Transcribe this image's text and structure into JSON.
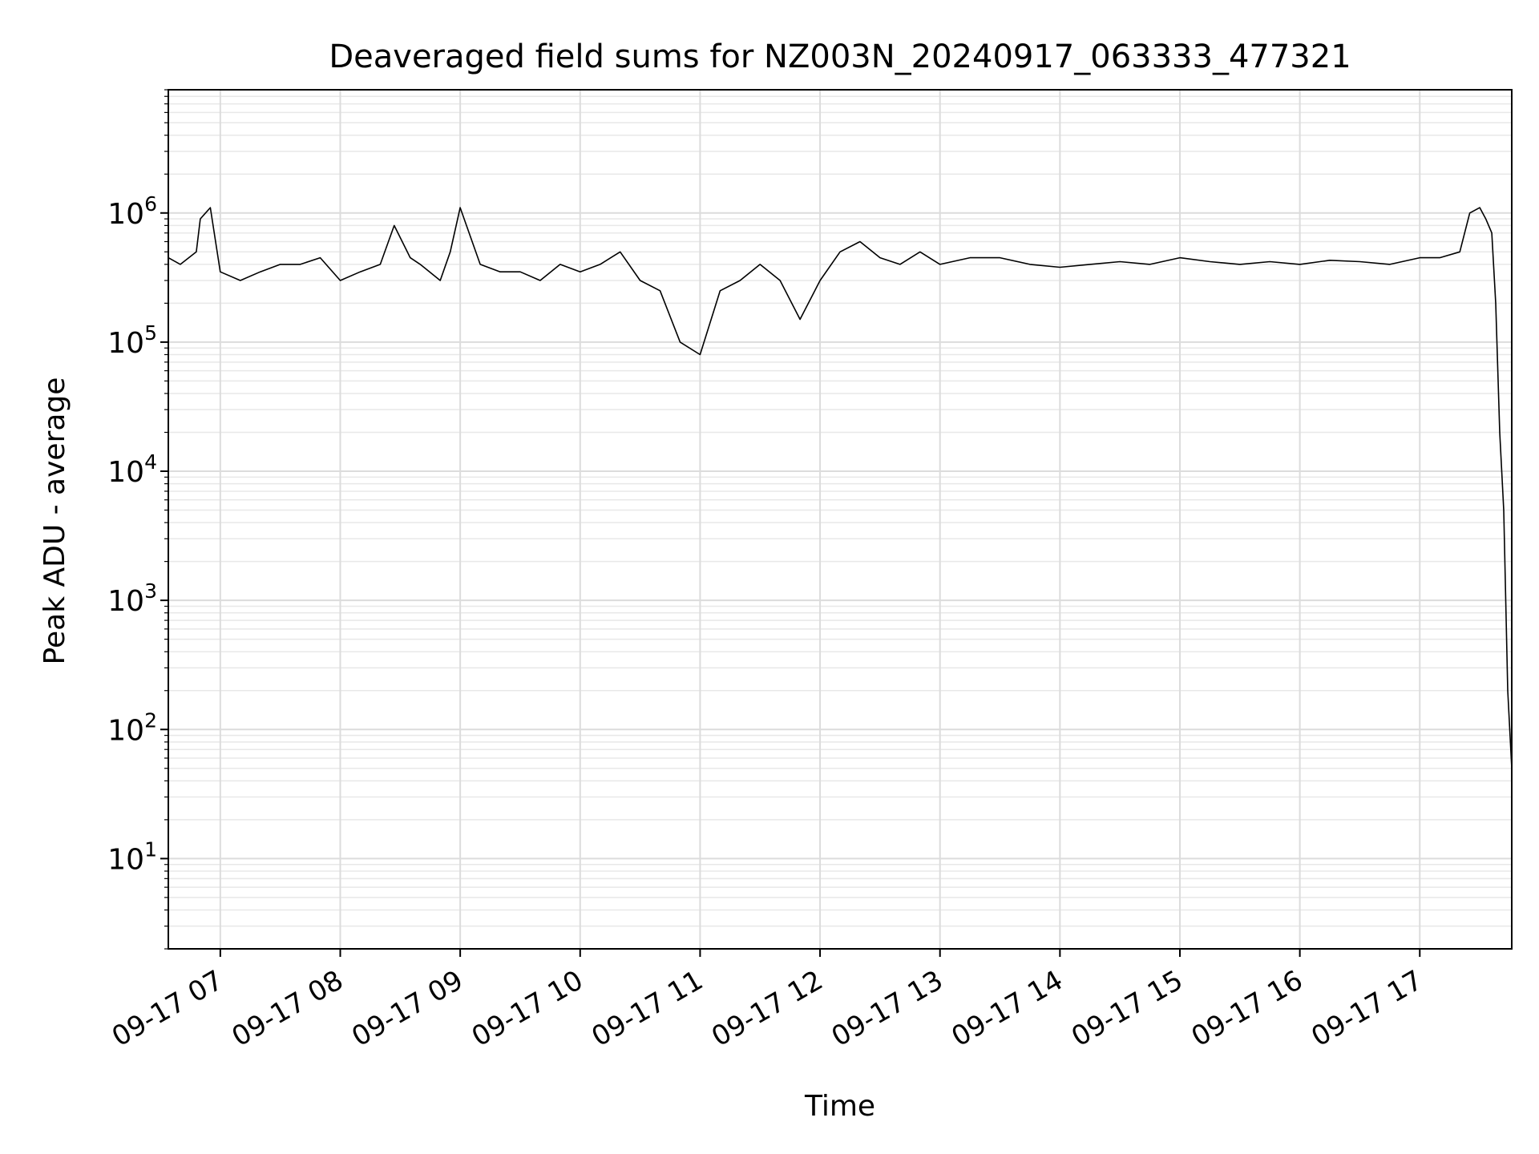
{
  "chart_data": {
    "type": "line",
    "title": "Deaveraged field sums for NZ003N_20240917_063333_477321",
    "xlabel": "Time",
    "ylabel": "Peak ADU - average",
    "yscale": "log",
    "ylim": [
      2,
      9000000
    ],
    "xlim": [
      "2024-09-17 06:34",
      "2024-09-17 17:46"
    ],
    "grid": "major and minor, light gray",
    "legend": "none",
    "line_color": "#000000",
    "x_ticks": [
      {
        "t": "2024-09-17 07:00",
        "label": "09-17 07"
      },
      {
        "t": "2024-09-17 08:00",
        "label": "09-17 08"
      },
      {
        "t": "2024-09-17 09:00",
        "label": "09-17 09"
      },
      {
        "t": "2024-09-17 10:00",
        "label": "09-17 10"
      },
      {
        "t": "2024-09-17 11:00",
        "label": "09-17 11"
      },
      {
        "t": "2024-09-17 12:00",
        "label": "09-17 12"
      },
      {
        "t": "2024-09-17 13:00",
        "label": "09-17 13"
      },
      {
        "t": "2024-09-17 14:00",
        "label": "09-17 14"
      },
      {
        "t": "2024-09-17 15:00",
        "label": "09-17 15"
      },
      {
        "t": "2024-09-17 16:00",
        "label": "09-17 16"
      },
      {
        "t": "2024-09-17 17:00",
        "label": "09-17 17"
      }
    ],
    "y_ticks": [
      {
        "value": 10,
        "base": "10",
        "exp": "1"
      },
      {
        "value": 100,
        "base": "10",
        "exp": "2"
      },
      {
        "value": 1000,
        "base": "10",
        "exp": "3"
      },
      {
        "value": 10000,
        "base": "10",
        "exp": "4"
      },
      {
        "value": 100000,
        "base": "10",
        "exp": "5"
      },
      {
        "value": 1000000,
        "base": "10",
        "exp": "6"
      }
    ],
    "series": [
      {
        "x": [
          "2024-09-17 06:34",
          "2024-09-17 06:40",
          "2024-09-17 06:48",
          "2024-09-17 06:50",
          "2024-09-17 06:55",
          "2024-09-17 07:00",
          "2024-09-17 07:10",
          "2024-09-17 07:20",
          "2024-09-17 07:30",
          "2024-09-17 07:40",
          "2024-09-17 07:50",
          "2024-09-17 08:00",
          "2024-09-17 08:10",
          "2024-09-17 08:20",
          "2024-09-17 08:27",
          "2024-09-17 08:35",
          "2024-09-17 08:40",
          "2024-09-17 08:50",
          "2024-09-17 08:55",
          "2024-09-17 09:00",
          "2024-09-17 09:10",
          "2024-09-17 09:20",
          "2024-09-17 09:30",
          "2024-09-17 09:40",
          "2024-09-17 09:50",
          "2024-09-17 10:00",
          "2024-09-17 10:10",
          "2024-09-17 10:20",
          "2024-09-17 10:30",
          "2024-09-17 10:40",
          "2024-09-17 10:50",
          "2024-09-17 11:00",
          "2024-09-17 11:10",
          "2024-09-17 11:20",
          "2024-09-17 11:30",
          "2024-09-17 11:40",
          "2024-09-17 11:50",
          "2024-09-17 12:00",
          "2024-09-17 12:10",
          "2024-09-17 12:20",
          "2024-09-17 12:30",
          "2024-09-17 12:40",
          "2024-09-17 12:50",
          "2024-09-17 13:00",
          "2024-09-17 13:15",
          "2024-09-17 13:30",
          "2024-09-17 13:45",
          "2024-09-17 14:00",
          "2024-09-17 14:15",
          "2024-09-17 14:30",
          "2024-09-17 14:45",
          "2024-09-17 15:00",
          "2024-09-17 15:15",
          "2024-09-17 15:30",
          "2024-09-17 15:45",
          "2024-09-17 16:00",
          "2024-09-17 16:15",
          "2024-09-17 16:30",
          "2024-09-17 16:45",
          "2024-09-17 17:00",
          "2024-09-17 17:10",
          "2024-09-17 17:20",
          "2024-09-17 17:25",
          "2024-09-17 17:30",
          "2024-09-17 17:33",
          "2024-09-17 17:36",
          "2024-09-17 17:38",
          "2024-09-17 17:40",
          "2024-09-17 17:42",
          "2024-09-17 17:44",
          "2024-09-17 17:46"
        ],
        "y": [
          450000,
          400000,
          500000,
          900000,
          1100000,
          350000,
          300000,
          350000,
          400000,
          400000,
          450000,
          300000,
          350000,
          400000,
          800000,
          450000,
          400000,
          300000,
          500000,
          1100000,
          400000,
          350000,
          350000,
          300000,
          400000,
          350000,
          400000,
          500000,
          300000,
          250000,
          100000,
          80000,
          250000,
          300000,
          400000,
          300000,
          150000,
          300000,
          500000,
          600000,
          450000,
          400000,
          500000,
          400000,
          450000,
          450000,
          400000,
          380000,
          400000,
          420000,
          400000,
          450000,
          420000,
          400000,
          420000,
          400000,
          430000,
          420000,
          400000,
          450000,
          450000,
          500000,
          1000000,
          1100000,
          900000,
          700000,
          200000,
          20000,
          5000,
          200,
          50
        ]
      }
    ]
  }
}
